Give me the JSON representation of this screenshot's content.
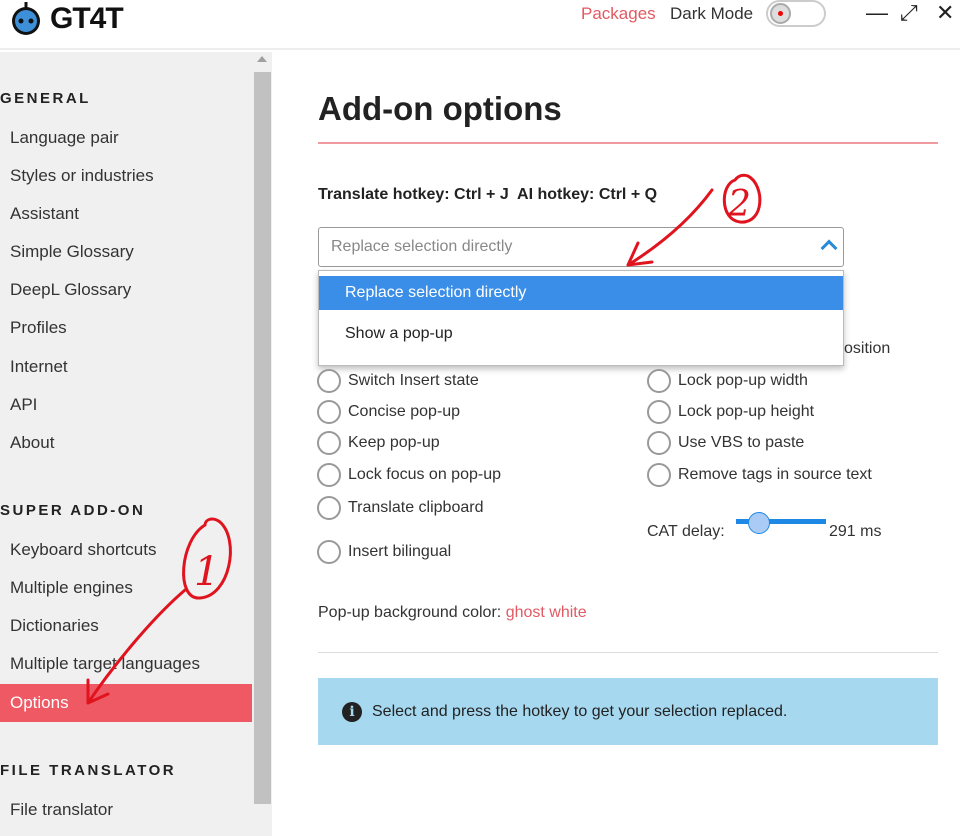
{
  "app": {
    "name": "GT4T"
  },
  "header": {
    "packages": "Packages",
    "dark_mode": "Dark Mode",
    "dark_mode_on": false,
    "minimize": "—",
    "maximize": "⤢",
    "close": "✕"
  },
  "sidebar": {
    "sections": [
      {
        "title": "GENERAL",
        "items": [
          "Language pair",
          "Styles or industries",
          "Assistant",
          "Simple Glossary",
          "DeepL Glossary",
          "Profiles",
          "Internet",
          "API",
          "About"
        ]
      },
      {
        "title": "SUPER ADD-ON",
        "items": [
          "Keyboard shortcuts",
          "Multiple engines",
          "Dictionaries",
          "Multiple target languages",
          "Options"
        ]
      },
      {
        "title": "FILE TRANSLATOR",
        "items": [
          "File translator"
        ]
      }
    ],
    "active": "Options"
  },
  "main": {
    "title": "Add-on options",
    "hotkey_text": "Translate hotkey: Ctrl + J  AI hotkey: Ctrl + Q",
    "select": {
      "value": "Replace selection directly",
      "options": [
        "Replace selection directly",
        "Show a pop-up"
      ],
      "highlighted": "Replace selection directly"
    },
    "hidden_option_fragment": "osition",
    "left_options": [
      "Switch Insert state",
      "Concise pop-up",
      "Keep pop-up",
      "Lock focus on pop-up",
      "Translate clipboard",
      "Insert bilingual"
    ],
    "right_options": [
      "Lock pop-up width",
      "Lock pop-up height",
      "Use VBS to paste",
      "Remove tags in source text"
    ],
    "cat_delay": {
      "label": "CAT delay:",
      "value_text": "291 ms",
      "fraction": 0.26
    },
    "bg_color_label": "Pop-up background color:",
    "bg_color_value": "ghost white",
    "info_text": "Select and press the hotkey to get your selection replaced."
  },
  "annotations": {
    "one": "1",
    "two": "2",
    "color": "#e0141e"
  },
  "colors": {
    "accent": "#ef5964",
    "link": "#e05a63",
    "selection": "#3b8ee8",
    "info_bg": "#a6d8ef"
  }
}
